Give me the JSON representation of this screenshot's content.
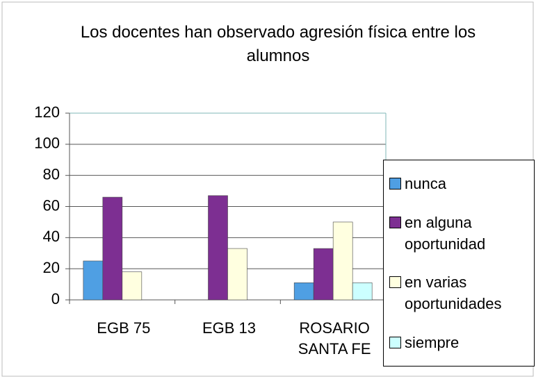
{
  "chart_data": {
    "type": "bar",
    "title": "Los docentes han observado agresión física entre los alumnos",
    "categories": [
      "EGB 75",
      "EGB 13",
      "ROSARIO SANTA FE"
    ],
    "series": [
      {
        "name": "nunca",
        "color": "#4f9fe3",
        "values": [
          25,
          null,
          11
        ]
      },
      {
        "name": "en alguna oportunidad",
        "color": "#7d2f92",
        "values": [
          66,
          67,
          33
        ]
      },
      {
        "name": "en varias oportunidades",
        "color": "#ffffe0",
        "values": [
          18,
          33,
          50
        ]
      },
      {
        "name": "siempre",
        "color": "#ccffff",
        "values": [
          null,
          null,
          11
        ]
      }
    ],
    "ylim": [
      0,
      120
    ],
    "yticks": [
      0,
      20,
      40,
      60,
      80,
      100,
      120
    ],
    "grid": true,
    "legend": "right"
  }
}
